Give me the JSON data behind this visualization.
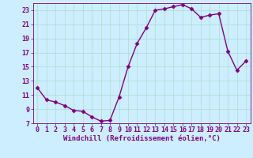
{
  "x": [
    0,
    1,
    2,
    3,
    4,
    5,
    6,
    7,
    8,
    9,
    10,
    11,
    12,
    13,
    14,
    15,
    16,
    17,
    18,
    19,
    20,
    21,
    22,
    23
  ],
  "y": [
    12.0,
    10.3,
    10.0,
    9.5,
    8.8,
    8.7,
    7.9,
    7.3,
    7.4,
    10.7,
    15.0,
    18.3,
    20.5,
    23.0,
    23.2,
    23.5,
    23.8,
    23.2,
    22.0,
    22.3,
    22.5,
    17.2,
    14.5,
    15.8
  ],
  "line_color": "#800080",
  "marker": "D",
  "markersize": 2.5,
  "linewidth": 1.0,
  "bg_color": "#cceeff",
  "grid_color": "#aaddcc",
  "xlabel": "Windchill (Refroidissement éolien,°C)",
  "xlabel_fontsize": 6.5,
  "tick_fontsize": 6.0,
  "ylim": [
    7,
    24
  ],
  "yticks": [
    7,
    9,
    11,
    13,
    15,
    17,
    19,
    21,
    23
  ],
  "xlim": [
    -0.5,
    23.5
  ],
  "xticks": [
    0,
    1,
    2,
    3,
    4,
    5,
    6,
    7,
    8,
    9,
    10,
    11,
    12,
    13,
    14,
    15,
    16,
    17,
    18,
    19,
    20,
    21,
    22,
    23
  ]
}
